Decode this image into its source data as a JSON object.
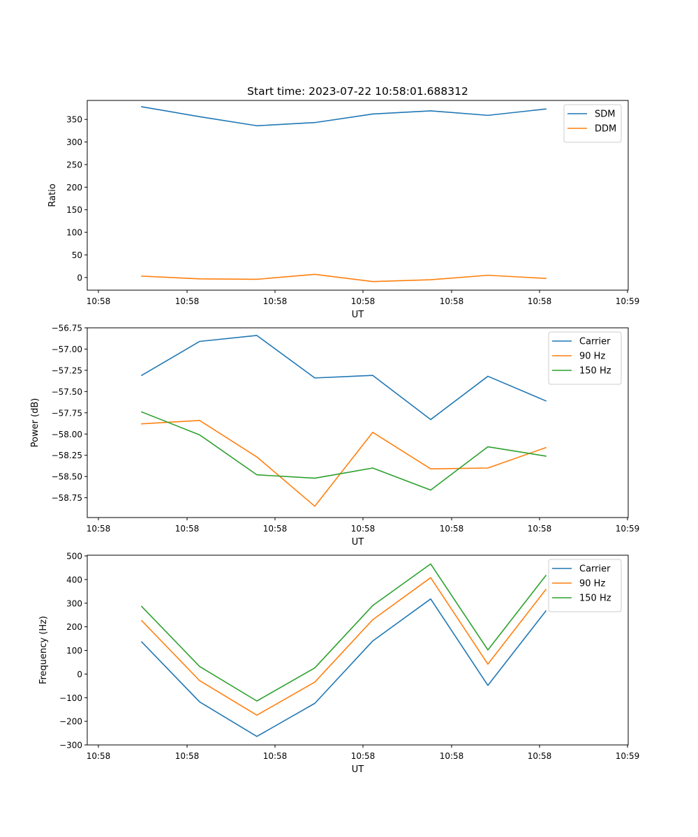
{
  "chart_data": [
    {
      "type": "line",
      "title": "Start time: 2023-07-22 10:58:01.688312",
      "xlabel": "UT",
      "ylabel": "Ratio",
      "xtick_labels": [
        "10:58",
        "10:58",
        "10:58",
        "10:58",
        "10:58",
        "10:58",
        "10:59"
      ],
      "yticks": [
        0,
        50,
        100,
        150,
        200,
        250,
        300,
        350
      ],
      "ylim": [
        -28,
        392
      ],
      "legend_position": "top-right",
      "series": [
        {
          "name": "SDM",
          "color": "#1f77b4",
          "values": [
            378,
            356,
            336,
            343,
            362,
            369,
            359,
            373
          ]
        },
        {
          "name": "DDM",
          "color": "#ff7f0e",
          "values": [
            3,
            -3,
            -4,
            7,
            -9,
            -5,
            5,
            -2
          ]
        }
      ]
    },
    {
      "type": "line",
      "title": "",
      "xlabel": "UT",
      "ylabel": "Power (dB)",
      "xtick_labels": [
        "10:58",
        "10:58",
        "10:58",
        "10:58",
        "10:58",
        "10:58",
        "10:59"
      ],
      "yticks": [
        -58.75,
        -58.5,
        -58.25,
        -58.0,
        -57.75,
        -57.5,
        -57.25,
        -57.0,
        -56.75
      ],
      "ytick_labels": [
        "−58.75",
        "−58.50",
        "−58.25",
        "−58.00",
        "−57.75",
        "−57.50",
        "−57.25",
        "−57.00",
        "−56.75"
      ],
      "ylim": [
        -58.983,
        -56.75
      ],
      "legend_position": "top-right",
      "series": [
        {
          "name": "Carrier",
          "color": "#1f77b4",
          "values": [
            -57.31,
            -56.91,
            -56.84,
            -57.34,
            -57.31,
            -57.83,
            -57.32,
            -57.61
          ]
        },
        {
          "name": "90 Hz",
          "color": "#ff7f0e",
          "values": [
            -57.88,
            -57.84,
            -58.27,
            -58.85,
            -57.98,
            -58.41,
            -58.4,
            -58.16
          ]
        },
        {
          "name": "150 Hz",
          "color": "#2ca02c",
          "values": [
            -57.74,
            -58.01,
            -58.48,
            -58.52,
            -58.4,
            -58.66,
            -58.15,
            -58.26
          ]
        }
      ]
    },
    {
      "type": "line",
      "title": "",
      "xlabel": "UT",
      "ylabel": "Frequency (Hz)",
      "xtick_labels": [
        "10:58",
        "10:58",
        "10:58",
        "10:58",
        "10:58",
        "10:58",
        "10:59"
      ],
      "yticks": [
        -300,
        -200,
        -100,
        0,
        100,
        200,
        300,
        400,
        500
      ],
      "ytick_labels": [
        "−300",
        "−200",
        "−100",
        "0",
        "100",
        "200",
        "300",
        "400",
        "500"
      ],
      "ylim": [
        -300,
        503
      ],
      "legend_position": "top-right",
      "series": [
        {
          "name": "Carrier",
          "color": "#1f77b4",
          "values": [
            136,
            -118,
            -264,
            -124,
            140,
            318,
            -48,
            267
          ]
        },
        {
          "name": "90 Hz",
          "color": "#ff7f0e",
          "values": [
            226,
            -28,
            -174,
            -34,
            230,
            408,
            42,
            358
          ]
        },
        {
          "name": "150 Hz",
          "color": "#2ca02c",
          "values": [
            286,
            32,
            -114,
            26,
            290,
            466,
            102,
            417
          ]
        }
      ]
    }
  ]
}
